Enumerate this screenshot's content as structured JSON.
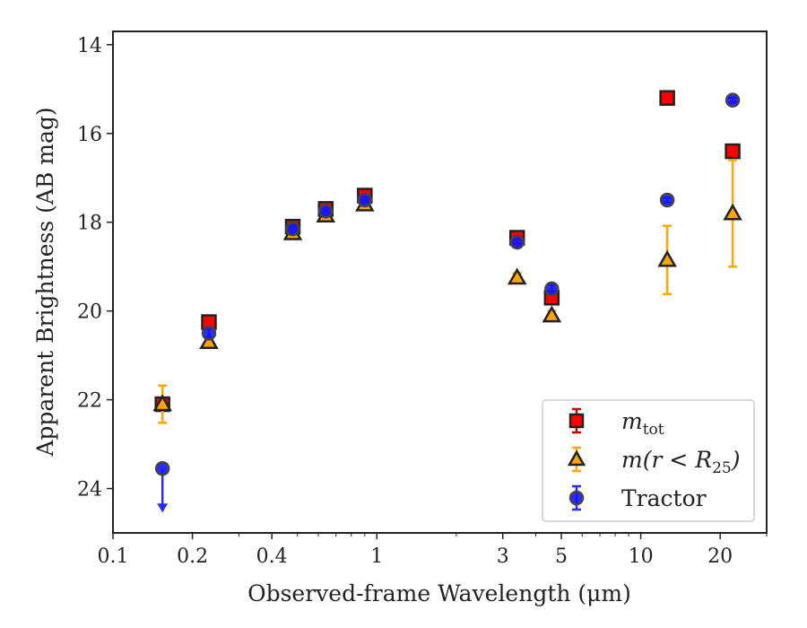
{
  "chart_data": {
    "type": "scatter",
    "xlabel": "Observed-frame Wavelength (μm)",
    "ylabel": "Apparent Brightness (AB mag)",
    "x_scale": "log",
    "xlim": [
      0.1,
      30
    ],
    "ylim": [
      25.0,
      13.7
    ],
    "y_inverted": true,
    "x_ticks": [
      {
        "value": 0.1,
        "label": "0.1"
      },
      {
        "value": 0.2,
        "label": "0.2"
      },
      {
        "value": 0.4,
        "label": "0.4"
      },
      {
        "value": 1,
        "label": "1"
      },
      {
        "value": 3,
        "label": "3"
      },
      {
        "value": 5,
        "label": "5"
      },
      {
        "value": 10,
        "label": "10"
      },
      {
        "value": 20,
        "label": "20"
      }
    ],
    "y_ticks": [
      {
        "value": 14,
        "label": "14"
      },
      {
        "value": 16,
        "label": "16"
      },
      {
        "value": 18,
        "label": "18"
      },
      {
        "value": 20,
        "label": "20"
      },
      {
        "value": 22,
        "label": "22"
      },
      {
        "value": 24,
        "label": "24"
      }
    ],
    "grid": false,
    "legend_position": "bottom-right",
    "series": [
      {
        "name": "m_tot",
        "marker": "square",
        "color": "#ff0000",
        "edge_color": "#222222",
        "points": [
          {
            "x": 0.154,
            "y": 22.1,
            "err": 0.1
          },
          {
            "x": 0.231,
            "y": 20.25,
            "err": 0.1
          },
          {
            "x": 0.48,
            "y": 18.1,
            "err": 0.1
          },
          {
            "x": 0.64,
            "y": 17.7,
            "err": 0.1
          },
          {
            "x": 0.9,
            "y": 17.4,
            "err": 0.1
          },
          {
            "x": 3.4,
            "y": 18.35,
            "err": 0.1
          },
          {
            "x": 4.6,
            "y": 19.7,
            "err": 0.1
          },
          {
            "x": 12.6,
            "y": 15.2,
            "err": 0.05
          },
          {
            "x": 22.3,
            "y": 16.4,
            "err": 0.05
          }
        ]
      },
      {
        "name": "m(r < R_25)",
        "marker": "triangle",
        "color": "#ffa500",
        "edge_color": "#222222",
        "points": [
          {
            "x": 0.154,
            "y": 22.1,
            "err": 0.42
          },
          {
            "x": 0.231,
            "y": 20.7,
            "err": 0.1
          },
          {
            "x": 0.48,
            "y": 18.25,
            "err": 0.1
          },
          {
            "x": 0.64,
            "y": 17.85,
            "err": 0.1
          },
          {
            "x": 0.9,
            "y": 17.6,
            "err": 0.1
          },
          {
            "x": 3.4,
            "y": 19.25,
            "err": 0.1
          },
          {
            "x": 4.6,
            "y": 20.1,
            "err": 0.1
          },
          {
            "x": 12.6,
            "y": 18.85,
            "err": 0.77
          },
          {
            "x": 22.3,
            "y": 17.8,
            "err": 1.2
          }
        ]
      },
      {
        "name": "Tractor",
        "marker": "circle",
        "color": "#1515ff",
        "edge_color": "#444444",
        "points": [
          {
            "x": 0.154,
            "y": 23.55,
            "upper_limit": true,
            "limit_to": 24.5
          },
          {
            "x": 0.231,
            "y": 20.5,
            "err": 0.1
          },
          {
            "x": 0.48,
            "y": 18.15,
            "err": 0.1
          },
          {
            "x": 0.64,
            "y": 17.75,
            "err": 0.1
          },
          {
            "x": 0.9,
            "y": 17.5,
            "err": 0.1
          },
          {
            "x": 3.4,
            "y": 18.45,
            "err": 0.1
          },
          {
            "x": 4.6,
            "y": 19.5,
            "err": 0.1
          },
          {
            "x": 12.6,
            "y": 17.5,
            "err": 0.05
          },
          {
            "x": 22.3,
            "y": 15.25,
            "err": 0.05
          }
        ]
      }
    ]
  },
  "legend": [
    {
      "series": 0,
      "main": "m",
      "sub": "tot",
      "rest": ""
    },
    {
      "series": 1,
      "main": "m(r < R",
      "sub": "25",
      "rest": ")"
    },
    {
      "series": 2,
      "main": "Tractor",
      "sub": "",
      "rest": ""
    }
  ]
}
